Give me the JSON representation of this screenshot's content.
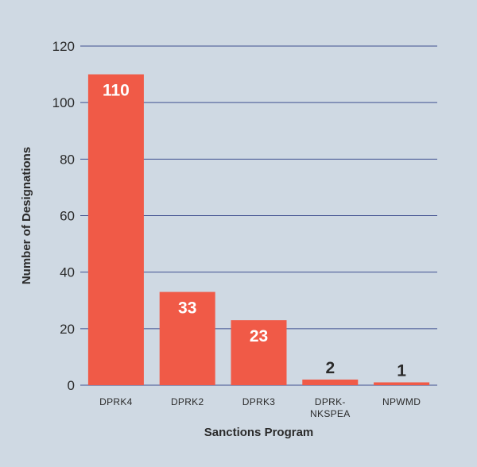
{
  "chart_data": {
    "type": "bar",
    "categories": [
      [
        "DPRK4"
      ],
      [
        "DPRK2"
      ],
      [
        "DPRK3"
      ],
      [
        "DPRK-",
        "NKSPEA"
      ],
      [
        "NPWMD"
      ]
    ],
    "values": [
      110,
      33,
      23,
      2,
      1
    ],
    "value_labels": [
      "110",
      "33",
      "23",
      "2",
      "1"
    ],
    "title": "",
    "xlabel": "Sanctions Program",
    "ylabel": "Number of Designations",
    "ylim": [
      0,
      120
    ],
    "yticks": [
      0,
      20,
      40,
      60,
      80,
      100,
      120
    ],
    "grid": true,
    "colors": {
      "background": "#cfd9e3",
      "bar": "#f05a47",
      "grid": "#3f4f8f",
      "label_inside": "#ffffff",
      "label_outside": "#2b2b2b",
      "text": "#2b2b2b"
    }
  }
}
